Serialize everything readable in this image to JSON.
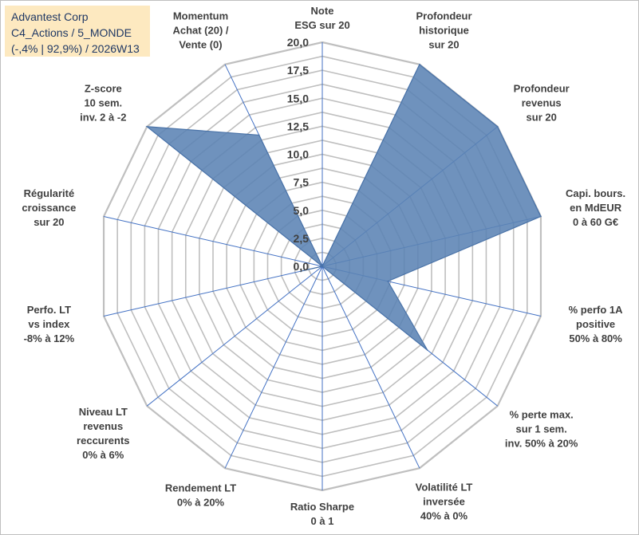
{
  "title": {
    "company": "Advantest Corp",
    "portfolio": "C4_Actions / 5_MONDE",
    "stats": "(-,4% | 92,9%) / 2026W13"
  },
  "colors": {
    "fill": "#5b83b4",
    "stroke": "#4a73a8",
    "grid": "#bfbfbf",
    "axis": "#4472c4",
    "title_bg": "#fde9c0",
    "title_text": "#1f3864",
    "label_text": "#404040"
  },
  "chart_data": {
    "type": "radar",
    "ylim": [
      0,
      20
    ],
    "grid_step": 1.25,
    "tick_labels": [
      "0,0",
      "2,5",
      "5,0",
      "7,5",
      "10,0",
      "12,5",
      "15,0",
      "17,5",
      "20,0"
    ],
    "axes": [
      [
        "Note",
        "ESG sur 20"
      ],
      [
        "Profondeur",
        "historique",
        "sur 20"
      ],
      [
        "Profondeur",
        "revenus",
        "sur 20"
      ],
      [
        "Capi. bours.",
        "en MdEUR",
        "0 à 60 G€"
      ],
      [
        "% perfo 1A",
        "positive",
        "50% à 80%"
      ],
      [
        "% perte max.",
        "sur 1 sem.",
        "inv. 50% à 20%"
      ],
      [
        "Volatilité LT",
        "inversée",
        "40% à 0%"
      ],
      [
        "Ratio Sharpe",
        "0 à 1"
      ],
      [
        "Rendement LT",
        "0% à 20%"
      ],
      [
        "Niveau LT",
        "revenus",
        "reccurents",
        "0% à 6%"
      ],
      [
        "Perfo. LT",
        "vs index",
        "-8% à 12%"
      ],
      [
        "Régularité",
        "croissance",
        "sur 20"
      ],
      [
        "Z-score",
        "10 sem.",
        "inv. 2 à -2"
      ],
      [
        "Momentum",
        "Achat (20) /",
        "Vente (0)"
      ]
    ],
    "series": [
      {
        "name": "Advantest Corp",
        "values": [
          0,
          20,
          20,
          20,
          6,
          12,
          0,
          0,
          0,
          0,
          2,
          0,
          20,
          13
        ]
      }
    ]
  }
}
